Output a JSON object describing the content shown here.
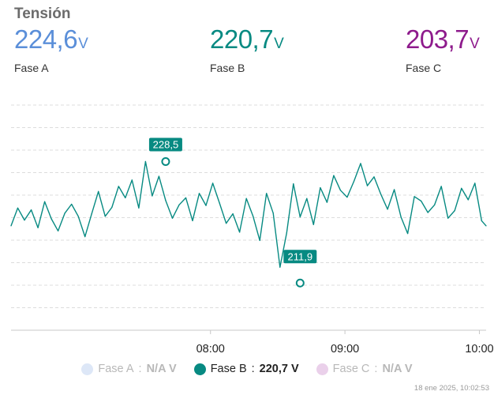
{
  "card": {
    "title": "Tensión"
  },
  "readings": [
    {
      "key": "a",
      "value": "224,6",
      "unit": "V",
      "label": "Fase A",
      "color": "#5b8fd9"
    },
    {
      "key": "b",
      "value": "220,7",
      "unit": "V",
      "label": "Fase B",
      "color": "#078a82"
    },
    {
      "key": "c",
      "value": "203,7",
      "unit": "V",
      "label": "Fase C",
      "color": "#8e1b8c"
    }
  ],
  "legend": [
    {
      "name": "Fase A",
      "value": "N/A V",
      "color": "#dde7f7",
      "state": "hidden"
    },
    {
      "name": "Fase B",
      "value": "220,7 V",
      "color": "#078a82",
      "state": "active"
    },
    {
      "name": "Fase C",
      "value": "N/A V",
      "color": "#ead0ea",
      "state": "hidden"
    }
  ],
  "timestamp": "18 ene 2025, 10:02:53",
  "chart_data": {
    "type": "line",
    "x_tick_labels": [
      "08:00",
      "09:00",
      "10:00"
    ],
    "x_unit": "minutes",
    "x_range": [
      391,
      603
    ],
    "y_range": [
      202,
      238
    ],
    "grid": "horizontal dashed",
    "series": [
      {
        "name": "Fase B",
        "color": "#078a82",
        "x": [
          391,
          394,
          397,
          400,
          403,
          406,
          409,
          412,
          415,
          418,
          421,
          424,
          427,
          430,
          433,
          436,
          439,
          442,
          445,
          448,
          451,
          454,
          457,
          460,
          463,
          466,
          469,
          472,
          475,
          478,
          481,
          484,
          487,
          490,
          493,
          496,
          499,
          502,
          505,
          508,
          511,
          514,
          517,
          520,
          523,
          526,
          529,
          532,
          535,
          538,
          541,
          544,
          547,
          550,
          553,
          556,
          559,
          562,
          565,
          568,
          571,
          574,
          577,
          580,
          583,
          586,
          589,
          592,
          595,
          598,
          601,
          603
        ],
        "values": [
          218.4,
          221.2,
          219.3,
          220.9,
          218.1,
          222.2,
          219.5,
          217.6,
          220.4,
          221.8,
          219.9,
          216.7,
          220.3,
          223.8,
          219.9,
          221.3,
          224.6,
          222.8,
          225.6,
          221.2,
          228.5,
          223.1,
          226.2,
          222.4,
          219.6,
          221.7,
          222.8,
          219.2,
          223.5,
          221.6,
          225.1,
          222.0,
          218.8,
          220.3,
          217.4,
          222.7,
          219.9,
          216.1,
          223.5,
          220.4,
          211.9,
          217.3,
          225.0,
          219.8,
          222.7,
          218.6,
          224.4,
          222.1,
          226.3,
          224.0,
          222.9,
          225.4,
          228.2,
          224.7,
          226.1,
          223.4,
          221.0,
          224.1,
          219.8,
          217.2,
          223.0,
          222.3,
          220.5,
          221.7,
          224.6,
          219.6,
          220.8,
          224.3,
          222.5,
          225.1,
          219.2,
          218.4
        ]
      }
    ],
    "annotations": [
      {
        "label": "228,5",
        "x": 460,
        "y": 228.5,
        "type": "max"
      },
      {
        "label": "211,9",
        "x": 520,
        "y": 211.9,
        "type": "min"
      }
    ]
  }
}
